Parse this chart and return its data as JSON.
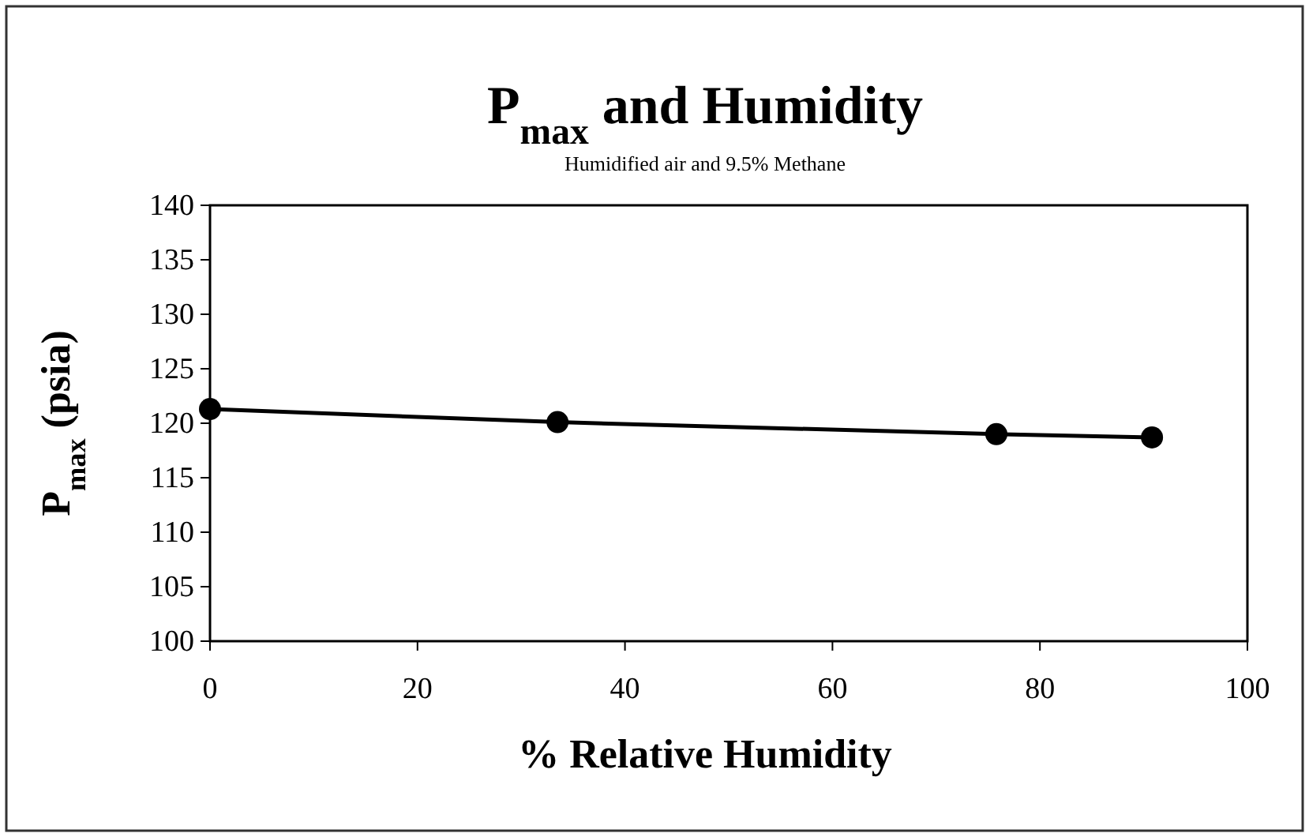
{
  "chart_data": {
    "type": "line",
    "title": "P$_{max}$ and Humidity",
    "subtitle": "Humidified air and 9.5% Methane",
    "xlabel": "% Relative Humidity",
    "ylabel": "P$_{max}$ (psia)",
    "x": [
      0,
      33.5,
      75.8,
      90.8
    ],
    "series": [
      {
        "color": "#000000",
        "values": [
          121.3,
          120.1,
          119.0,
          118.7
        ]
      }
    ],
    "xlim": [
      0,
      100
    ],
    "xticks": [
      0,
      20,
      40,
      60,
      80,
      100
    ],
    "ylim": [
      100,
      140
    ],
    "yticks": [
      100,
      105,
      110,
      115,
      120,
      125,
      130,
      135,
      140
    ],
    "grid": false,
    "marker": "circle",
    "line_style": "solid"
  }
}
